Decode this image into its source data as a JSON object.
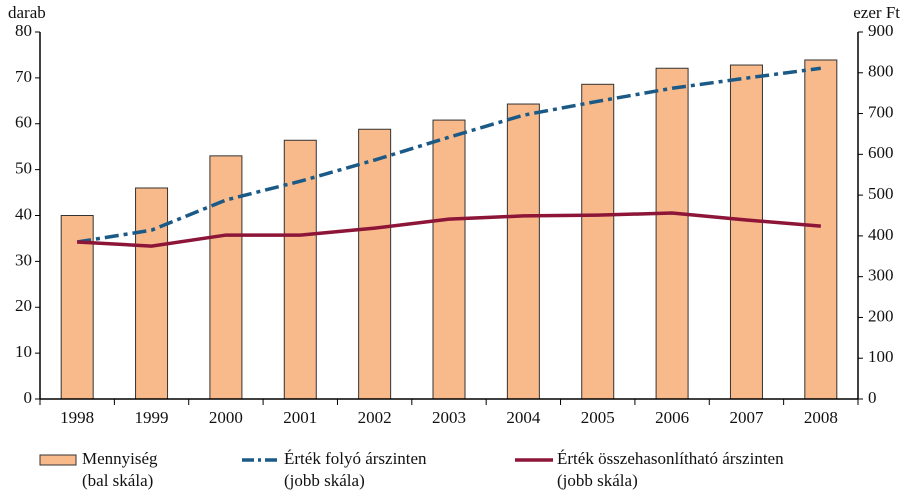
{
  "chart_data": {
    "type": "bar_line",
    "ylabel": "darab",
    "y2label": "ezer Ft",
    "categories": [
      "1998",
      "1999",
      "2000",
      "2001",
      "2002",
      "2003",
      "2004",
      "2005",
      "2006",
      "2007",
      "2008"
    ],
    "ylim": [
      0,
      80
    ],
    "yticks": [
      0,
      10,
      20,
      30,
      40,
      50,
      60,
      70,
      80
    ],
    "y2lim": [
      0,
      900
    ],
    "y2ticks": [
      0,
      100,
      200,
      300,
      400,
      500,
      600,
      700,
      800,
      900
    ],
    "series": [
      {
        "name": "Mennyiség\n(bal skála)",
        "type": "bar",
        "color": "#f8b98b",
        "values": [
          40,
          46,
          53,
          56.4,
          58.8,
          60.8,
          64.3,
          68.6,
          72.1,
          72.8,
          73.9
        ]
      },
      {
        "name": "Érték folyó árszinten\n(jobb skála)",
        "type": "line",
        "axis": "y2",
        "style": "dashdot",
        "color": "#1b5a86",
        "values": [
          385,
          414,
          488,
          534,
          586,
          642,
          696,
          730,
          762,
          787,
          811
        ]
      },
      {
        "name": "Érték összehasonlítható árszinten\n(jobb skála)",
        "type": "line",
        "axis": "y2",
        "style": "solid",
        "color": "#8c1538",
        "values": [
          385,
          375,
          402,
          402,
          419,
          441,
          449,
          451,
          456,
          439,
          424
        ]
      }
    ]
  }
}
